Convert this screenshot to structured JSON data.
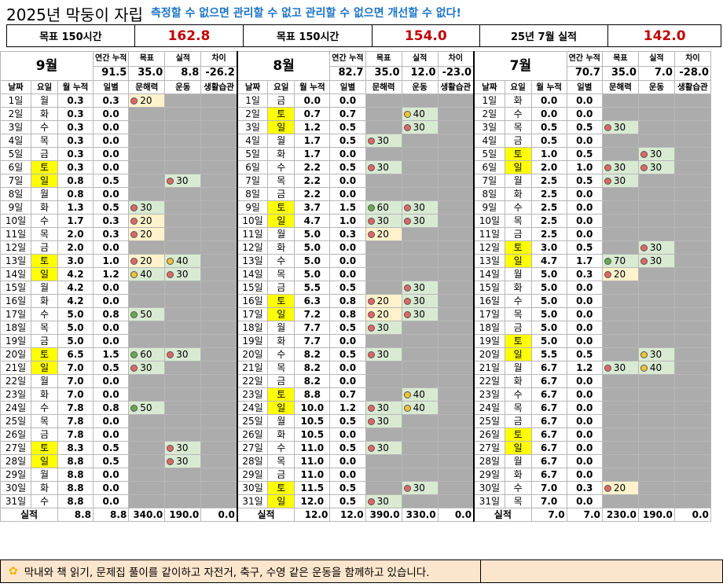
{
  "header": {
    "title": "2025년 막둥이 자립",
    "slogan": "측정할 수 없으면 관리할 수 없고 관리할 수 없으면 개선할 수 없다!"
  },
  "summary": [
    {
      "label": "목표 150시간",
      "value": "162.8"
    },
    {
      "label": "목표 150시간",
      "value": "154.0"
    },
    {
      "label": "25년 7월 실적",
      "value": "142.0"
    }
  ],
  "col_headers": [
    "날짜",
    "요일",
    "월 누적",
    "일별",
    "문해력",
    "운동",
    "생활습관"
  ],
  "stat_headers": [
    "연간 누적",
    "목표",
    "실적",
    "차이"
  ],
  "total_label": "실적",
  "months": [
    {
      "name": "9월",
      "stats": [
        "91.5",
        "35.0",
        "8.8",
        "-26.2"
      ],
      "totals": [
        "8.8",
        "8.8",
        "340.0",
        "190.0",
        "0.0"
      ],
      "rows": [
        [
          "1일",
          "월",
          "0.3",
          "0.3",
          "r20",
          "",
          ""
        ],
        [
          "2일",
          "화",
          "0.3",
          "0.0",
          "",
          "",
          ""
        ],
        [
          "3일",
          "수",
          "0.3",
          "0.0",
          "",
          "",
          ""
        ],
        [
          "4일",
          "목",
          "0.3",
          "0.0",
          "",
          "",
          ""
        ],
        [
          "5일",
          "금",
          "0.3",
          "0.0",
          "",
          "",
          ""
        ],
        [
          "6일",
          "토",
          "0.3",
          "0.0",
          "",
          "",
          ""
        ],
        [
          "7일",
          "일",
          "0.8",
          "0.5",
          "",
          "r30",
          ""
        ],
        [
          "8일",
          "월",
          "0.8",
          "0.0",
          "",
          "",
          ""
        ],
        [
          "9일",
          "화",
          "1.3",
          "0.5",
          "r30",
          "",
          ""
        ],
        [
          "10일",
          "수",
          "1.7",
          "0.3",
          "r20",
          "",
          ""
        ],
        [
          "11일",
          "목",
          "2.0",
          "0.3",
          "r20",
          "",
          ""
        ],
        [
          "12일",
          "금",
          "2.0",
          "0.0",
          "",
          "",
          ""
        ],
        [
          "13일",
          "토",
          "3.0",
          "1.0",
          "r20",
          "y40",
          ""
        ],
        [
          "14일",
          "일",
          "4.2",
          "1.2",
          "y40",
          "r30",
          ""
        ],
        [
          "15일",
          "월",
          "4.2",
          "0.0",
          "",
          "",
          ""
        ],
        [
          "16일",
          "화",
          "4.2",
          "0.0",
          "",
          "",
          ""
        ],
        [
          "17일",
          "수",
          "5.0",
          "0.8",
          "g50",
          "",
          ""
        ],
        [
          "18일",
          "목",
          "5.0",
          "0.0",
          "",
          "",
          ""
        ],
        [
          "19일",
          "금",
          "5.0",
          "0.0",
          "",
          "",
          ""
        ],
        [
          "20일",
          "토",
          "6.5",
          "1.5",
          "g60",
          "r30",
          ""
        ],
        [
          "21일",
          "일",
          "7.0",
          "0.5",
          "r30",
          "",
          ""
        ],
        [
          "22일",
          "월",
          "7.0",
          "0.0",
          "",
          "",
          ""
        ],
        [
          "23일",
          "화",
          "7.0",
          "0.0",
          "",
          "",
          ""
        ],
        [
          "24일",
          "수",
          "7.8",
          "0.8",
          "g50",
          "",
          ""
        ],
        [
          "25일",
          "목",
          "7.8",
          "0.0",
          "",
          "",
          ""
        ],
        [
          "26일",
          "금",
          "7.8",
          "0.0",
          "",
          "",
          ""
        ],
        [
          "27일",
          "토",
          "8.3",
          "0.5",
          "",
          "r30",
          ""
        ],
        [
          "28일",
          "일",
          "8.8",
          "0.5",
          "",
          "r30",
          ""
        ],
        [
          "29일",
          "월",
          "8.8",
          "0.0",
          "",
          "",
          ""
        ],
        [
          "30일",
          "화",
          "8.8",
          "0.0",
          "",
          "",
          ""
        ],
        [
          "31일",
          "수",
          "8.8",
          "0.0",
          "",
          "",
          ""
        ]
      ]
    },
    {
      "name": "8월",
      "stats": [
        "82.7",
        "35.0",
        "12.0",
        "-23.0"
      ],
      "totals": [
        "12.0",
        "12.0",
        "390.0",
        "330.0",
        "0.0"
      ],
      "rows": [
        [
          "1일",
          "금",
          "0.0",
          "0.0",
          "",
          "",
          ""
        ],
        [
          "2일",
          "토",
          "0.7",
          "0.7",
          "",
          "y40",
          ""
        ],
        [
          "3일",
          "일",
          "1.2",
          "0.5",
          "",
          "r30",
          ""
        ],
        [
          "4일",
          "월",
          "1.7",
          "0.5",
          "r30",
          "",
          ""
        ],
        [
          "5일",
          "화",
          "1.7",
          "0.0",
          "",
          "",
          ""
        ],
        [
          "6일",
          "수",
          "2.2",
          "0.5",
          "r30",
          "",
          ""
        ],
        [
          "7일",
          "목",
          "2.2",
          "0.0",
          "",
          "",
          ""
        ],
        [
          "8일",
          "금",
          "2.2",
          "0.0",
          "",
          "",
          ""
        ],
        [
          "9일",
          "토",
          "3.7",
          "1.5",
          "g60",
          "r30",
          ""
        ],
        [
          "10일",
          "일",
          "4.7",
          "1.0",
          "r30",
          "r30",
          ""
        ],
        [
          "11일",
          "월",
          "5.0",
          "0.3",
          "r20",
          "",
          ""
        ],
        [
          "12일",
          "화",
          "5.0",
          "0.0",
          "",
          "",
          ""
        ],
        [
          "13일",
          "수",
          "5.0",
          "0.0",
          "",
          "",
          ""
        ],
        [
          "14일",
          "목",
          "5.0",
          "0.0",
          "",
          "",
          ""
        ],
        [
          "15일",
          "금",
          "5.5",
          "0.5",
          "",
          "r30",
          ""
        ],
        [
          "16일",
          "토",
          "6.3",
          "0.8",
          "r20",
          "r30",
          ""
        ],
        [
          "17일",
          "일",
          "7.2",
          "0.8",
          "r20",
          "r30",
          ""
        ],
        [
          "18일",
          "월",
          "7.7",
          "0.5",
          "r30",
          "",
          ""
        ],
        [
          "19일",
          "화",
          "7.7",
          "0.0",
          "",
          "",
          ""
        ],
        [
          "20일",
          "수",
          "8.2",
          "0.5",
          "r30",
          "",
          ""
        ],
        [
          "21일",
          "목",
          "8.2",
          "0.0",
          "",
          "",
          ""
        ],
        [
          "22일",
          "금",
          "8.2",
          "0.0",
          "",
          "",
          ""
        ],
        [
          "23일",
          "토",
          "8.8",
          "0.7",
          "",
          "y40",
          ""
        ],
        [
          "24일",
          "일",
          "10.0",
          "1.2",
          "r30",
          "y40",
          ""
        ],
        [
          "25일",
          "월",
          "10.5",
          "0.5",
          "r30",
          "",
          ""
        ],
        [
          "26일",
          "화",
          "10.5",
          "0.0",
          "",
          "",
          ""
        ],
        [
          "27일",
          "수",
          "11.0",
          "0.5",
          "r30",
          "",
          ""
        ],
        [
          "28일",
          "목",
          "11.0",
          "0.0",
          "",
          "",
          ""
        ],
        [
          "29일",
          "금",
          "11.0",
          "0.0",
          "",
          "",
          ""
        ],
        [
          "30일",
          "토",
          "11.5",
          "0.5",
          "",
          "r30",
          ""
        ],
        [
          "31일",
          "일",
          "12.0",
          "0.5",
          "r30",
          "",
          ""
        ]
      ]
    },
    {
      "name": "7월",
      "stats": [
        "70.7",
        "35.0",
        "7.0",
        "-28.0"
      ],
      "totals": [
        "7.0",
        "7.0",
        "230.0",
        "190.0",
        "0.0"
      ],
      "rows": [
        [
          "1일",
          "화",
          "0.0",
          "0.0",
          "",
          "",
          ""
        ],
        [
          "2일",
          "수",
          "0.0",
          "0.0",
          "",
          "",
          ""
        ],
        [
          "3일",
          "목",
          "0.5",
          "0.5",
          "r30",
          "",
          ""
        ],
        [
          "4일",
          "금",
          "0.5",
          "0.0",
          "",
          "",
          ""
        ],
        [
          "5일",
          "토",
          "1.0",
          "0.5",
          "",
          "r30",
          ""
        ],
        [
          "6일",
          "일",
          "2.0",
          "1.0",
          "r30",
          "r30",
          ""
        ],
        [
          "7일",
          "월",
          "2.5",
          "0.5",
          "r30",
          "",
          ""
        ],
        [
          "8일",
          "화",
          "2.5",
          "0.0",
          "",
          "",
          ""
        ],
        [
          "9일",
          "수",
          "2.5",
          "0.0",
          "",
          "",
          ""
        ],
        [
          "10일",
          "목",
          "2.5",
          "0.0",
          "",
          "",
          ""
        ],
        [
          "11일",
          "금",
          "2.5",
          "0.0",
          "",
          "",
          ""
        ],
        [
          "12일",
          "토",
          "3.0",
          "0.5",
          "",
          "r30",
          ""
        ],
        [
          "13일",
          "일",
          "4.7",
          "1.7",
          "g70",
          "r30",
          ""
        ],
        [
          "14일",
          "월",
          "5.0",
          "0.3",
          "r20",
          "",
          ""
        ],
        [
          "15일",
          "화",
          "5.0",
          "0.0",
          "",
          "",
          ""
        ],
        [
          "16일",
          "수",
          "5.0",
          "0.0",
          "",
          "",
          ""
        ],
        [
          "17일",
          "목",
          "5.0",
          "0.0",
          "",
          "",
          ""
        ],
        [
          "18일",
          "금",
          "5.0",
          "0.0",
          "",
          "",
          ""
        ],
        [
          "19일",
          "토",
          "5.0",
          "0.0",
          "",
          "",
          ""
        ],
        [
          "20일",
          "일",
          "5.5",
          "0.5",
          "",
          "y30",
          ""
        ],
        [
          "21일",
          "월",
          "6.7",
          "1.2",
          "r30",
          "y40",
          ""
        ],
        [
          "22일",
          "화",
          "6.7",
          "0.0",
          "",
          "",
          ""
        ],
        [
          "23일",
          "수",
          "6.7",
          "0.0",
          "",
          "",
          ""
        ],
        [
          "24일",
          "목",
          "6.7",
          "0.0",
          "",
          "",
          ""
        ],
        [
          "25일",
          "금",
          "6.7",
          "0.0",
          "",
          "",
          ""
        ],
        [
          "26일",
          "토",
          "6.7",
          "0.0",
          "",
          "",
          ""
        ],
        [
          "27일",
          "일",
          "6.7",
          "0.0",
          "",
          "",
          ""
        ],
        [
          "28일",
          "월",
          "6.7",
          "0.0",
          "",
          "",
          ""
        ],
        [
          "29일",
          "화",
          "6.7",
          "0.0",
          "",
          "",
          ""
        ],
        [
          "30일",
          "수",
          "7.0",
          "0.3",
          "r20",
          "",
          ""
        ],
        [
          "31일",
          "목",
          "7.0",
          "0.0",
          "",
          "",
          ""
        ]
      ]
    }
  ],
  "footer": {
    "icon": "sparkle-icon",
    "note": "막내와 책 읽기, 문제집 풀이를 같이하고 자전거, 축구, 수영 같은 운동을 함께하고 있습니다."
  },
  "colors": {
    "weekend": "#ffff00",
    "slogan": "#1a73c8",
    "summary_value": "#c00000",
    "empty_cell": "#acacac",
    "low_value": "#fff2cc",
    "high_value": "#d9ead3",
    "footer_bg": "#fce5cd"
  }
}
